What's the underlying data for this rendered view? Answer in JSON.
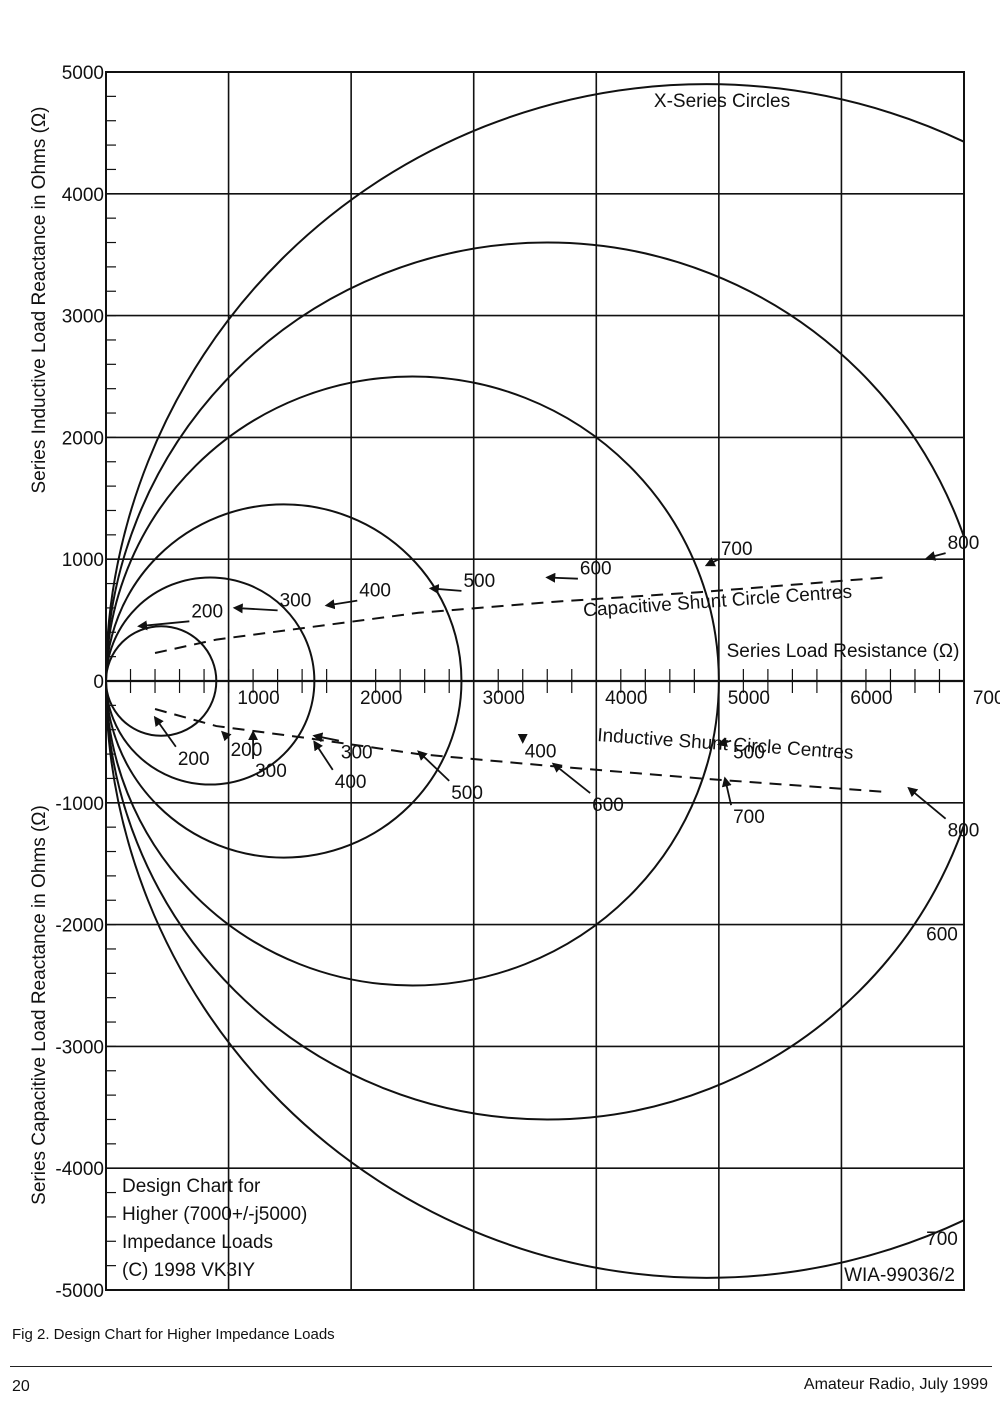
{
  "chart_data": {
    "type": "line",
    "title": "X-Series Circles",
    "xlabel": "Series Load Resistance (Ω)",
    "ylabel_upper": "Series Inductive Load Reactance in Ohms  (Ω)",
    "ylabel_lower": "Series Capacitive Load Reactance in Ohms  (Ω)",
    "xlim": [
      0,
      7000
    ],
    "ylim": [
      -5000,
      5000
    ],
    "grid": true,
    "x_ticks": [
      {
        "value": 1000,
        "label": "1000"
      },
      {
        "value": 2000,
        "label": "2000"
      },
      {
        "value": 3000,
        "label": "3000"
      },
      {
        "value": 4000,
        "label": "4000"
      },
      {
        "value": 5000,
        "label": "5000"
      },
      {
        "value": 6000,
        "label": "6000"
      },
      {
        "value": 7000,
        "label": "7000"
      }
    ],
    "y_ticks": [
      {
        "value": 5000,
        "label": "5000"
      },
      {
        "value": 4000,
        "label": "4000"
      },
      {
        "value": 3000,
        "label": "3000"
      },
      {
        "value": 2000,
        "label": "2000"
      },
      {
        "value": 1000,
        "label": "1000"
      },
      {
        "value": 0,
        "label": "0"
      },
      {
        "value": -1000,
        "label": "-1000"
      },
      {
        "value": -2000,
        "label": "-2000"
      },
      {
        "value": -3000,
        "label": "-3000"
      },
      {
        "value": -4000,
        "label": "-4000"
      },
      {
        "value": -5000,
        "label": "-5000"
      }
    ],
    "circles": [
      {
        "cx": 450,
        "cy": 0,
        "r": 450
      },
      {
        "cx": 850,
        "cy": 0,
        "r": 850
      },
      {
        "cx": 1450,
        "cy": 0,
        "r": 1450
      },
      {
        "cx": 2500,
        "cy": 0,
        "r": 2500
      },
      {
        "cx": 3600,
        "cy": 0,
        "r": 3600
      },
      {
        "cx": 4900,
        "cy": 0,
        "r": 4900
      }
    ],
    "series": [
      {
        "name": "Capacitive Shunt Circle Centres",
        "x": [
          400,
          900,
          1650,
          2550,
          3650,
          4850,
          6350
        ],
        "y": [
          230,
          340,
          440,
          560,
          650,
          730,
          850
        ]
      },
      {
        "name": "Inductive Shunt Circle Centres",
        "x": [
          400,
          900,
          1650,
          2550,
          3650,
          4850,
          6350
        ],
        "y": [
          -230,
          -370,
          -470,
          -600,
          -700,
          -800,
          -910
        ]
      }
    ],
    "upper_labels": [
      {
        "text": "200",
        "x": 270,
        "y": 450,
        "tx": 680,
        "ty": 490
      },
      {
        "text": "300",
        "x": 1050,
        "y": 600,
        "tx": 1400,
        "ty": 580
      },
      {
        "text": "400",
        "x": 1800,
        "y": 620,
        "tx": 2050,
        "ty": 660
      },
      {
        "text": "500",
        "x": 2650,
        "y": 760,
        "tx": 2900,
        "ty": 740
      },
      {
        "text": "600",
        "x": 3600,
        "y": 850,
        "tx": 3850,
        "ty": 840
      },
      {
        "text": "700",
        "x": 4900,
        "y": 950,
        "tx": 5000,
        "ty": 1000
      },
      {
        "text": "800",
        "x": 6700,
        "y": 1010,
        "tx": 6850,
        "ty": 1050
      }
    ],
    "lower_labels": [
      {
        "text": "200",
        "x": 400,
        "y": -300,
        "tx": 570,
        "ty": -540
      },
      {
        "text": "200",
        "x": 950,
        "y": -420,
        "tx": 1000,
        "ty": -470
      },
      {
        "text": "300",
        "x": 1200,
        "y": -420,
        "tx": 1200,
        "ty": -640
      },
      {
        "text": "300",
        "x": 1700,
        "y": -450,
        "tx": 1900,
        "ty": -490
      },
      {
        "text": "400",
        "x": 1700,
        "y": -500,
        "tx": 1850,
        "ty": -730
      },
      {
        "text": "400",
        "x": 3400,
        "y": -500,
        "tx": 3400,
        "ty": -480
      },
      {
        "text": "500",
        "x": 2550,
        "y": -580,
        "tx": 2800,
        "ty": -820
      },
      {
        "text": "500",
        "x": 5000,
        "y": -520,
        "tx": 5100,
        "ty": -490
      },
      {
        "text": "600",
        "x": 3650,
        "y": -680,
        "tx": 3950,
        "ty": -920
      },
      {
        "text": "700",
        "x": 5050,
        "y": -800,
        "tx": 5100,
        "ty": -1020
      },
      {
        "text": "800",
        "x": 6550,
        "y": -880,
        "tx": 6850,
        "ty": -1130
      }
    ],
    "edge_labels": [
      {
        "text": "600",
        "x": 6950,
        "y": -2130
      },
      {
        "text": "700",
        "x": 6950,
        "y": -4630
      }
    ],
    "annotations": {
      "capacitive": "Capacitive Shunt Circle Centres",
      "inductive": "Inductive Shunt Circle Centres",
      "design_line1": "Design Chart for",
      "design_line2": "Higher (7000+/-j5000)",
      "design_line3": "Impedance Loads",
      "design_line4": "(C) 1998 VK3IY",
      "code": "WIA-99036/2"
    }
  },
  "caption": "Fig 2. Design Chart for Higher Impedance Loads",
  "page_number": "20",
  "publication": "Amateur Radio, July 1999"
}
